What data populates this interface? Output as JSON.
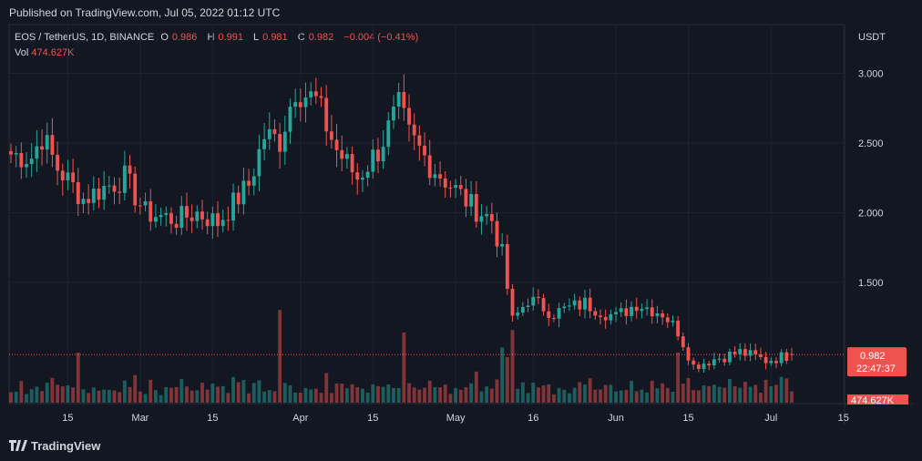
{
  "header": {
    "published": "Published on TradingView.com, Jul 05, 2022 01:12 UTC"
  },
  "legend": {
    "symbol": "EOS / TetherUS, 1D, BINANCE",
    "o_label": "O",
    "o_value": "0.986",
    "h_label": "H",
    "h_value": "0.991",
    "l_label": "L",
    "l_value": "0.981",
    "c_label": "C",
    "c_value": "0.982",
    "change": "−0.004 (−0.41%)",
    "vol_label": "Vol",
    "vol_value": "474.627K"
  },
  "price_axis": {
    "currency": "USDT",
    "last_price": "0.982",
    "countdown": "22:47:37",
    "vol_badge": "474.627K"
  },
  "footer": {
    "brand": "TradingView"
  },
  "colors": {
    "up": "#26a69a",
    "down": "#ef5350",
    "background": "#131722",
    "grid": "#1e222d"
  },
  "chart_data": {
    "type": "candlestick",
    "yunit": "USDT",
    "ylim": [
      0.63,
      3.35
    ],
    "yticks": [
      "3.000",
      "2.500",
      "2.000",
      "1.500"
    ],
    "ytick_values": [
      3.0,
      2.5,
      2.0,
      1.5
    ],
    "xticks": [
      "15",
      "Mar",
      "15",
      "Apr",
      "15",
      "May",
      "16",
      "Jun",
      "15",
      "Jul",
      "15"
    ],
    "xtick_dates": [
      "2022-02-15",
      "2022-03-01",
      "2022-03-15",
      "2022-04-01",
      "2022-04-15",
      "2022-05-01",
      "2022-05-16",
      "2022-06-01",
      "2022-06-15",
      "2022-07-01",
      "2022-07-15"
    ],
    "first_date": "2022-02-04",
    "last_date": "2022-07-05",
    "keypoints": {
      "dates": [
        "2022-02-04",
        "2022-02-08",
        "2022-02-10",
        "2022-02-13",
        "2022-02-18",
        "2022-02-22",
        "2022-02-26",
        "2022-03-02",
        "2022-03-08",
        "2022-03-12",
        "2022-03-16",
        "2022-03-22",
        "2022-03-25",
        "2022-03-28",
        "2022-03-31",
        "2022-04-04",
        "2022-04-08",
        "2022-04-12",
        "2022-04-16",
        "2022-04-20",
        "2022-04-22",
        "2022-04-26",
        "2022-04-30",
        "2022-05-04",
        "2022-05-08",
        "2022-05-10",
        "2022-05-12",
        "2022-05-15",
        "2022-05-20",
        "2022-05-26",
        "2022-06-01",
        "2022-06-05",
        "2022-06-10",
        "2022-06-13",
        "2022-06-16",
        "2022-06-20",
        "2022-06-25",
        "2022-06-30",
        "2022-07-05"
      ],
      "closes": [
        2.42,
        2.4,
        2.55,
        2.32,
        2.1,
        2.18,
        2.25,
        2.0,
        1.95,
        2.0,
        1.93,
        2.2,
        2.55,
        2.52,
        2.9,
        2.8,
        2.45,
        2.25,
        2.45,
        2.75,
        2.55,
        2.35,
        2.2,
        2.05,
        1.95,
        1.7,
        1.22,
        1.38,
        1.28,
        1.35,
        1.25,
        1.35,
        1.28,
        1.15,
        0.9,
        0.95,
        1.0,
        0.94,
        0.982
      ]
    }
  },
  "volume_data": {
    "badge_label": "474.627K",
    "spikes": [
      {
        "date": "2022-02-17",
        "value": 1.0
      },
      {
        "date": "2022-03-28",
        "value": 1.85
      },
      {
        "date": "2022-04-21",
        "value": 1.4
      },
      {
        "date": "2022-05-10",
        "value": 1.1
      },
      {
        "date": "2022-05-12",
        "value": 1.45
      },
      {
        "date": "2022-06-13",
        "value": 1.0
      }
    ]
  }
}
